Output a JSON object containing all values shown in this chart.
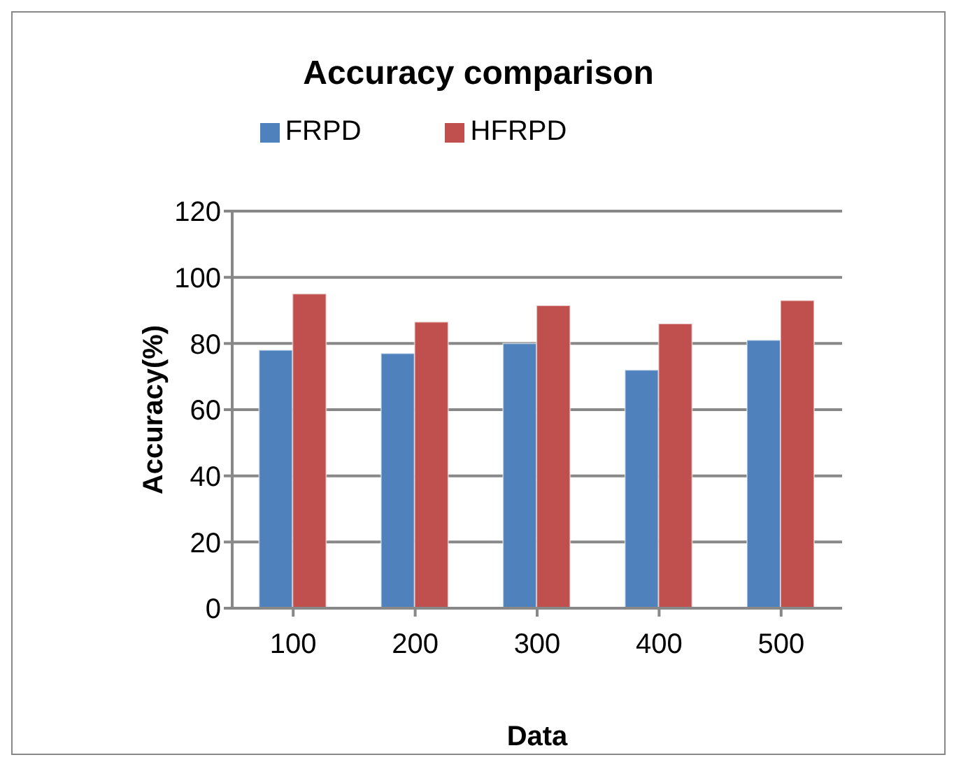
{
  "chart_data": {
    "type": "bar",
    "title": "Accuracy comparison",
    "xlabel": "Data",
    "ylabel": "Accuracy(%)",
    "categories": [
      "100",
      "200",
      "300",
      "400",
      "500"
    ],
    "series": [
      {
        "name": "FRPD",
        "color": "#4f81bd",
        "values": [
          78,
          77,
          80,
          72,
          81
        ]
      },
      {
        "name": "HFRPD",
        "color": "#c0504d",
        "values": [
          95,
          86.5,
          91.5,
          86,
          93
        ]
      }
    ],
    "ylim": [
      0,
      120
    ],
    "yticks": [
      0,
      20,
      40,
      60,
      80,
      100,
      120
    ],
    "grid": "y",
    "legend": "top"
  }
}
